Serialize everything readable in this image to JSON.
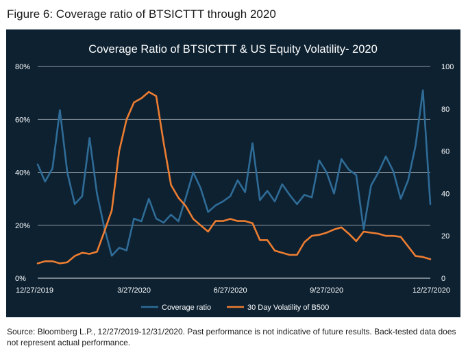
{
  "figure_title": "Figure 6: Coverage ratio of BTSICTTT through 2020",
  "source_note": "Source: Bloomberg L.P., 12/27/2019-12/31/2020. Past performance is not indicative of future results. Back-tested data does not represent actual performance.",
  "colors": {
    "background": "#0d2131",
    "coverage": "#2f6c97",
    "volatility": "#ed7d31",
    "text": "#ffffff",
    "grid": "#ffffff"
  },
  "chart_data": {
    "type": "line",
    "title": "Coverage Ratio of BTSICTTT & US Equity Volatility- 2020",
    "y_left": {
      "min": 0,
      "max": 80,
      "ticks": [
        0,
        20,
        40,
        60,
        80
      ],
      "tick_labels": [
        "0%",
        "20%",
        "40%",
        "60%",
        "80%"
      ]
    },
    "y_right": {
      "min": 0,
      "max": 100,
      "ticks": [
        0,
        20,
        40,
        60,
        80,
        100
      ],
      "tick_labels": [
        "0",
        "20",
        "40",
        "60",
        "80",
        "100"
      ]
    },
    "x_tick_labels": [
      "12/27/2019",
      "3/27/2020",
      "6/27/2020",
      "9/27/2020",
      "12/27/2020"
    ],
    "x_tick_index": [
      0,
      13,
      26,
      39,
      52
    ],
    "legend": [
      "Coverage ratio",
      "30 Day Volatility of B500"
    ],
    "legend_position": "bottom",
    "series": [
      {
        "name": "Coverage ratio",
        "axis": "left",
        "values": [
          43,
          36.5,
          41.5,
          63.5,
          40,
          28,
          31,
          53,
          32,
          19,
          8.5,
          11.5,
          10.5,
          22.5,
          21.5,
          30,
          22.5,
          21,
          24,
          21.5,
          30.5,
          40,
          34,
          25,
          27.5,
          29,
          31,
          37,
          32.5,
          51,
          29.5,
          33,
          29,
          35.5,
          31.5,
          28,
          31.5,
          30.5,
          44.5,
          40,
          32,
          45,
          41,
          39,
          18.5,
          35,
          40,
          46,
          40.5,
          30,
          37,
          50,
          71,
          28
        ]
      },
      {
        "name": "30 Day Volatility of B500",
        "axis": "right",
        "values": [
          7,
          8,
          8,
          7,
          7.5,
          10.5,
          12,
          11.5,
          12.5,
          22,
          32,
          60,
          75,
          83,
          85,
          88,
          86,
          64,
          44,
          38,
          34,
          28,
          25,
          22,
          27,
          27,
          28,
          27,
          27,
          26,
          18,
          18,
          13,
          12,
          11,
          11,
          17,
          20,
          20.5,
          21.5,
          23,
          24,
          21,
          17.5,
          22,
          21.5,
          21,
          20,
          20,
          19.5,
          15,
          10.5,
          10,
          9
        ]
      }
    ]
  }
}
